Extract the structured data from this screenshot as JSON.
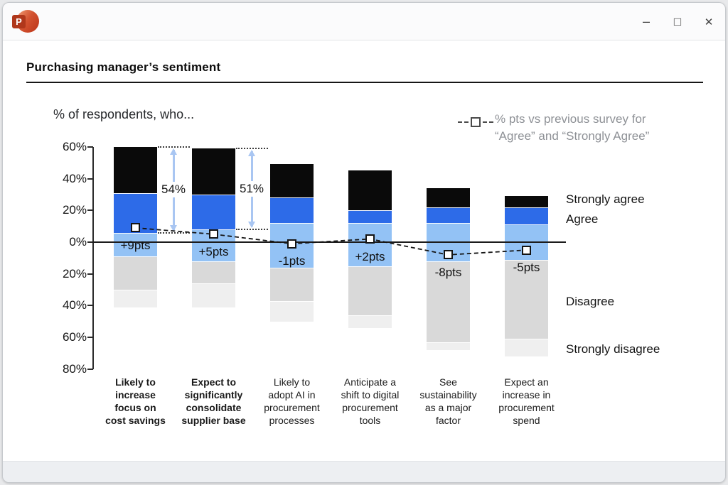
{
  "window": {
    "app_icon_letter": "P",
    "controls": {
      "minimize": "–",
      "maximize": "□",
      "close": "✕"
    }
  },
  "slide": {
    "title": "Purchasing manager’s sentiment",
    "chart_title": "% of respondents, who...",
    "legend": {
      "line1": "% pts vs previous survey for",
      "line2": "“Agree” and “Strongly Agree”"
    },
    "series_labels": [
      "Strongly agree",
      "Agree",
      "Disagree",
      "Strongly disagree"
    ]
  },
  "chart_data": {
    "type": "bar",
    "subtype": "diverging-stacked-bar-with-delta-line",
    "title": "% of respondents, who...",
    "xlabel": "",
    "ylabel": "",
    "ylim": [
      -80,
      60
    ],
    "grid": false,
    "legend_position": "top-right",
    "y_ticks": [
      60,
      40,
      20,
      0,
      -20,
      -40,
      -60,
      -80
    ],
    "y_tick_labels": [
      "60%",
      "40%",
      "20%",
      "0%",
      "20%",
      "40%",
      "60%",
      "80%"
    ],
    "segment_order": [
      "strongly_agree",
      "agree",
      "neutral",
      "disagree",
      "strongly_disagree"
    ],
    "colors": {
      "strongly_agree": "#0a0a0a",
      "agree": "#2d6be8",
      "neutral": "#93c2f5",
      "disagree": "#d9d9d9",
      "strongly_disagree": "#efefef",
      "delta_line": "#141414",
      "annotation_arrow": "#a9c6f2"
    },
    "categories": [
      "Likely to increase focus on cost savings",
      "Expect to significantly consolidate supplier base",
      "Likely to adopt AI in procurement processes",
      "Anticipate a shift to digital procurement tools",
      "See sustainability as a major factor",
      "Expect an increase in procurement spend"
    ],
    "bars": [
      {
        "label_lines": [
          "Likely to",
          "increase",
          "focus on",
          "cost savings"
        ],
        "bold": true,
        "segments": {
          "strongly_agree": [
            31,
            60
          ],
          "agree": [
            6,
            31
          ],
          "neutral": [
            -9,
            6
          ],
          "disagree": [
            -30,
            -9
          ],
          "strongly_disagree": [
            -41,
            -30
          ]
        },
        "delta_pts": 9,
        "delta_label": "+9pts",
        "annotation": {
          "label": "54%",
          "from": 6,
          "to": 60
        }
      },
      {
        "label_lines": [
          "Expect to",
          "significantly",
          "consolidate",
          "supplier base"
        ],
        "bold": true,
        "segments": {
          "strongly_agree": [
            30,
            59
          ],
          "agree": [
            8,
            30
          ],
          "neutral": [
            -12,
            8
          ],
          "disagree": [
            -26,
            -12
          ],
          "strongly_disagree": [
            -41,
            -26
          ]
        },
        "delta_pts": 5,
        "delta_label": "+5pts",
        "annotation": {
          "label": "51%",
          "from": 8,
          "to": 59
        }
      },
      {
        "label_lines": [
          "Likely to",
          "adopt AI in",
          "procurement",
          "processes"
        ],
        "bold": false,
        "segments": {
          "strongly_agree": [
            28,
            49
          ],
          "agree": [
            12,
            28
          ],
          "neutral": [
            -16,
            12
          ],
          "disagree": [
            -37,
            -16
          ],
          "strongly_disagree": [
            -50,
            -37
          ]
        },
        "delta_pts": -1,
        "delta_label": "-1pts",
        "annotation": null
      },
      {
        "label_lines": [
          "Anticipate a",
          "shift to digital",
          "procurement",
          "tools"
        ],
        "bold": false,
        "segments": {
          "strongly_agree": [
            20,
            45
          ],
          "agree": [
            12,
            20
          ],
          "neutral": [
            -15,
            12
          ],
          "disagree": [
            -46,
            -15
          ],
          "strongly_disagree": [
            -54,
            -46
          ]
        },
        "delta_pts": 2,
        "delta_label": "+2pts",
        "annotation": null
      },
      {
        "label_lines": [
          "See",
          "sustainability",
          "as a major",
          "factor"
        ],
        "bold": false,
        "segments": {
          "strongly_agree": [
            22,
            34
          ],
          "agree": [
            12,
            22
          ],
          "neutral": [
            -12,
            12
          ],
          "disagree": [
            -63,
            -12
          ],
          "strongly_disagree": [
            -68,
            -63
          ]
        },
        "delta_pts": -8,
        "delta_label": "-8pts",
        "annotation": null
      },
      {
        "label_lines": [
          "Expect an",
          "increase in",
          "procurement",
          "spend"
        ],
        "bold": false,
        "segments": {
          "strongly_agree": [
            22,
            29
          ],
          "agree": [
            11,
            22
          ],
          "neutral": [
            -11,
            11
          ],
          "disagree": [
            -61,
            -11
          ],
          "strongly_disagree": [
            -72,
            -61
          ]
        },
        "delta_pts": -5,
        "delta_label": "-5pts",
        "annotation": null
      }
    ]
  }
}
